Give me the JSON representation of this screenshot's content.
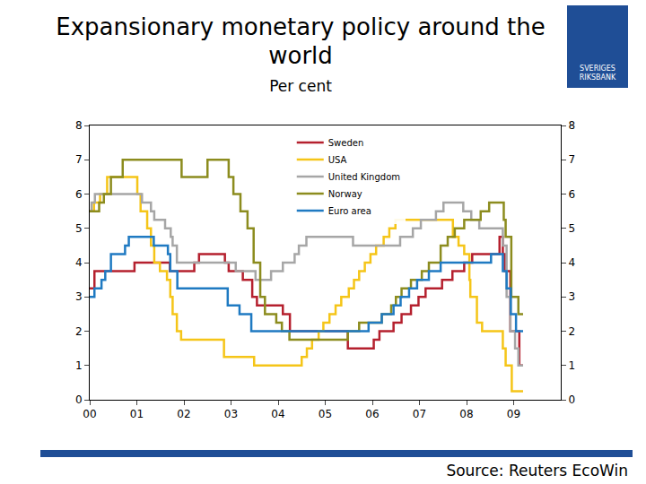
{
  "chart_data": {
    "type": "line",
    "title": "Expansionary monetary policy around the world",
    "subtitle": "Per cent",
    "source": "Source: Reuters EcoWin",
    "logo_text": "SVERIGES RIKSBANK",
    "line_style": "step",
    "grid": false,
    "legend": "top",
    "xlim": [
      2000,
      2010
    ],
    "xticks": [
      {
        "value": 2000,
        "label": "00"
      },
      {
        "value": 2001,
        "label": "01"
      },
      {
        "value": 2002,
        "label": "02"
      },
      {
        "value": 2003,
        "label": "03"
      },
      {
        "value": 2004,
        "label": "04"
      },
      {
        "value": 2005,
        "label": "05"
      },
      {
        "value": 2006,
        "label": "06"
      },
      {
        "value": 2007,
        "label": "07"
      },
      {
        "value": 2008,
        "label": "08"
      },
      {
        "value": 2009,
        "label": "09"
      }
    ],
    "ylim": [
      0,
      8
    ],
    "yticks": [
      0,
      1,
      2,
      3,
      4,
      5,
      6,
      7,
      8
    ],
    "y2lim": [
      0,
      8
    ],
    "y2ticks": [
      0,
      1,
      2,
      3,
      4,
      5,
      6,
      7,
      8
    ],
    "series": [
      {
        "name": "Sweden",
        "color": "#b5202e",
        "x": [
          2000.0,
          2000.1,
          2000.95,
          2001.7,
          2002.22,
          2002.32,
          2002.87,
          2002.95,
          2003.25,
          2003.45,
          2003.55,
          2004.1,
          2004.25,
          2005.48,
          2006.03,
          2006.15,
          2006.45,
          2006.62,
          2006.82,
          2006.98,
          2007.13,
          2007.48,
          2007.7,
          2007.95,
          2008.12,
          2008.7,
          2008.77,
          2008.81,
          2008.93,
          2009.12,
          2009.2
        ],
        "values": [
          3.25,
          3.75,
          4.0,
          3.75,
          4.0,
          4.25,
          4.0,
          3.75,
          3.5,
          3.0,
          2.75,
          2.5,
          2.0,
          1.5,
          1.75,
          2.0,
          2.25,
          2.5,
          2.75,
          3.0,
          3.25,
          3.5,
          3.75,
          4.0,
          4.25,
          4.75,
          4.25,
          3.75,
          2.0,
          1.0,
          1.0
        ]
      },
      {
        "name": "USA",
        "color": "#f5c518",
        "x": [
          2000.0,
          2000.09,
          2000.22,
          2000.37,
          2001.01,
          2001.08,
          2001.22,
          2001.3,
          2001.37,
          2001.49,
          2001.64,
          2001.71,
          2001.76,
          2001.85,
          2001.94,
          2002.85,
          2003.49,
          2004.5,
          2004.61,
          2004.72,
          2004.86,
          2004.96,
          2005.09,
          2005.22,
          2005.34,
          2005.5,
          2005.61,
          2005.72,
          2005.84,
          2005.96,
          2006.08,
          2006.24,
          2006.36,
          2006.49,
          2007.71,
          2007.83,
          2007.95,
          2008.06,
          2008.08,
          2008.22,
          2008.33,
          2008.77,
          2008.83,
          2008.96,
          2009.2
        ],
        "values": [
          5.5,
          5.75,
          6.0,
          6.5,
          6.0,
          5.5,
          5.0,
          4.5,
          4.0,
          3.75,
          3.5,
          3.0,
          2.5,
          2.0,
          1.75,
          1.25,
          1.0,
          1.25,
          1.5,
          1.75,
          2.0,
          2.25,
          2.5,
          2.75,
          3.0,
          3.25,
          3.5,
          3.75,
          4.0,
          4.25,
          4.5,
          4.75,
          5.0,
          5.25,
          4.75,
          4.5,
          4.25,
          3.5,
          3.0,
          2.25,
          2.0,
          1.5,
          1.0,
          0.25,
          0.25
        ]
      },
      {
        "name": "United Kingdom",
        "color": "#a6a6a6",
        "x": [
          2000.0,
          2000.04,
          2000.11,
          2001.11,
          2001.3,
          2001.37,
          2001.6,
          2001.72,
          2001.76,
          2001.85,
          2003.1,
          2003.52,
          2003.85,
          2004.1,
          2004.35,
          2004.44,
          2004.6,
          2005.59,
          2006.59,
          2006.86,
          2007.03,
          2007.35,
          2007.51,
          2007.93,
          2008.1,
          2008.27,
          2008.77,
          2008.85,
          2008.93,
          2009.03,
          2009.1,
          2009.2
        ],
        "values": [
          5.5,
          5.75,
          6.0,
          5.75,
          5.5,
          5.25,
          5.0,
          4.75,
          4.5,
          4.0,
          3.75,
          3.5,
          3.75,
          4.0,
          4.25,
          4.5,
          4.75,
          4.5,
          4.75,
          5.0,
          5.25,
          5.5,
          5.75,
          5.5,
          5.25,
          5.0,
          4.5,
          3.0,
          2.0,
          1.5,
          1.0,
          1.0
        ]
      },
      {
        "name": "Norway",
        "color": "#8c8c1e",
        "x": [
          2000.0,
          2000.2,
          2000.3,
          2000.45,
          2000.7,
          2001.95,
          2002.5,
          2002.95,
          2003.05,
          2003.2,
          2003.35,
          2003.48,
          2003.62,
          2003.72,
          2003.96,
          2004.08,
          2004.24,
          2005.48,
          2005.72,
          2006.2,
          2006.4,
          2006.5,
          2006.62,
          2006.82,
          2007.05,
          2007.2,
          2007.45,
          2007.6,
          2007.75,
          2007.95,
          2008.3,
          2008.48,
          2008.79,
          2008.83,
          2008.95,
          2009.1,
          2009.2
        ],
        "values": [
          5.5,
          5.75,
          6.0,
          6.5,
          7.0,
          6.5,
          7.0,
          6.5,
          6.0,
          5.5,
          5.0,
          4.0,
          3.0,
          2.5,
          2.25,
          2.0,
          1.75,
          2.0,
          2.25,
          2.5,
          2.75,
          3.0,
          3.25,
          3.5,
          3.75,
          4.0,
          4.5,
          4.75,
          5.0,
          5.25,
          5.5,
          5.75,
          5.25,
          4.75,
          3.0,
          2.5,
          2.5
        ]
      },
      {
        "name": "Euro area",
        "color": "#1f7ac2",
        "x": [
          2000.0,
          2000.1,
          2000.25,
          2000.33,
          2000.45,
          2000.75,
          2000.83,
          2001.36,
          2001.66,
          2001.71,
          2001.86,
          2002.93,
          2003.18,
          2003.43,
          2005.92,
          2006.2,
          2006.45,
          2006.6,
          2006.78,
          2006.95,
          2007.2,
          2007.45,
          2008.52,
          2008.77,
          2008.85,
          2008.94,
          2009.05,
          2009.2
        ],
        "values": [
          3.0,
          3.25,
          3.5,
          3.75,
          4.25,
          4.5,
          4.75,
          4.5,
          4.25,
          3.75,
          3.25,
          2.75,
          2.5,
          2.0,
          2.25,
          2.5,
          2.75,
          3.0,
          3.25,
          3.5,
          3.75,
          4.0,
          4.25,
          3.75,
          3.25,
          2.5,
          2.0,
          2.0
        ]
      }
    ]
  }
}
